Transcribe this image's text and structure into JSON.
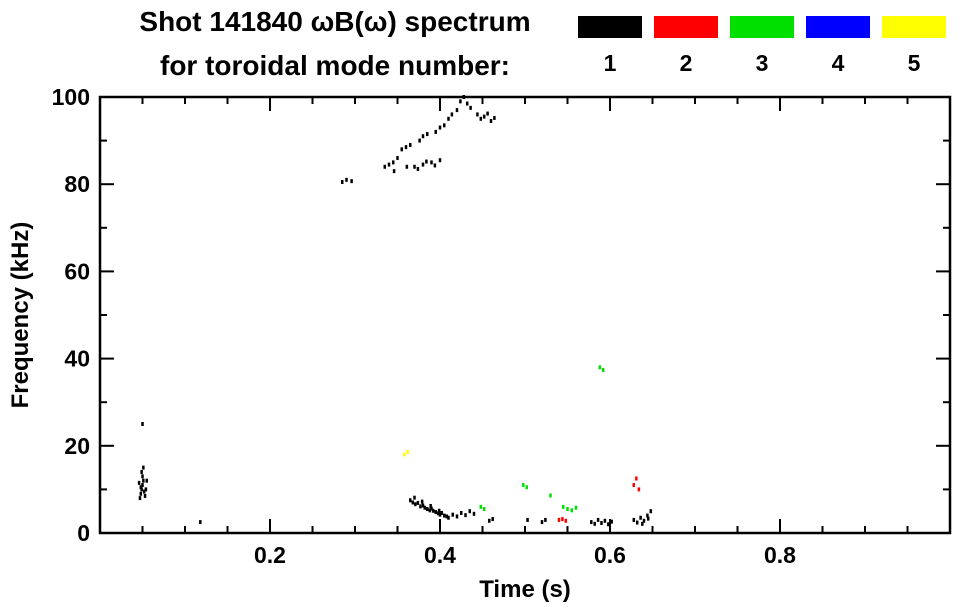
{
  "header": {
    "title_line1": "Shot 141840 ωB(ω) spectrum",
    "title_line2": "for toroidal mode number:"
  },
  "legend": {
    "position": "top-right",
    "items": [
      {
        "label": "1",
        "color": "#000000"
      },
      {
        "label": "2",
        "color": "#ff0000"
      },
      {
        "label": "3",
        "color": "#00e000"
      },
      {
        "label": "4",
        "color": "#0000ff"
      },
      {
        "label": "5",
        "color": "#ffff00"
      }
    ]
  },
  "chart_data": {
    "type": "scatter",
    "title": "Shot 141840 ωB(ω) spectrum for toroidal mode number: 1 2 3 4 5",
    "xlabel": "Time (s)",
    "ylabel": "Frequency (kHz)",
    "xlim": [
      0,
      1.0
    ],
    "ylim": [
      0,
      100
    ],
    "grid": false,
    "x_ticks": [
      {
        "value": 0.2,
        "label": "0.2"
      },
      {
        "value": 0.4,
        "label": "0.4"
      },
      {
        "value": 0.6,
        "label": "0.6"
      },
      {
        "value": 0.8,
        "label": "0.8"
      }
    ],
    "y_ticks": [
      {
        "value": 0,
        "label": "0"
      },
      {
        "value": 20,
        "label": "20"
      },
      {
        "value": 40,
        "label": "40"
      },
      {
        "value": 60,
        "label": "60"
      },
      {
        "value": 80,
        "label": "80"
      },
      {
        "value": 100,
        "label": "100"
      }
    ],
    "x_minor_step": 0.05,
    "y_minor_step": 10,
    "series": [
      {
        "name": "n=1",
        "mode": 1,
        "color": "#000000",
        "points": [
          [
            0.047,
            8
          ],
          [
            0.048,
            9
          ],
          [
            0.049,
            10
          ],
          [
            0.05,
            11
          ],
          [
            0.051,
            12
          ],
          [
            0.05,
            13
          ],
          [
            0.049,
            14
          ],
          [
            0.051,
            15
          ],
          [
            0.052,
            9.5
          ],
          [
            0.048,
            10.5
          ],
          [
            0.053,
            8.5
          ],
          [
            0.046,
            11.5
          ],
          [
            0.054,
            10
          ],
          [
            0.055,
            12
          ],
          [
            0.05,
            25
          ],
          [
            0.118,
            2.5
          ],
          [
            0.285,
            80.5
          ],
          [
            0.29,
            81
          ],
          [
            0.296,
            80.7
          ],
          [
            0.335,
            84
          ],
          [
            0.34,
            84.5
          ],
          [
            0.345,
            85
          ],
          [
            0.35,
            86
          ],
          [
            0.346,
            83
          ],
          [
            0.355,
            88
          ],
          [
            0.36,
            88.5
          ],
          [
            0.361,
            84
          ],
          [
            0.365,
            89
          ],
          [
            0.37,
            84
          ],
          [
            0.374,
            83.5
          ],
          [
            0.38,
            84.5
          ],
          [
            0.384,
            85.2
          ],
          [
            0.376,
            90
          ],
          [
            0.38,
            91
          ],
          [
            0.385,
            91.5
          ],
          [
            0.39,
            85
          ],
          [
            0.394,
            84.3
          ],
          [
            0.4,
            85.5
          ],
          [
            0.395,
            92
          ],
          [
            0.4,
            93
          ],
          [
            0.405,
            93.5
          ],
          [
            0.41,
            95
          ],
          [
            0.414,
            96
          ],
          [
            0.42,
            97
          ],
          [
            0.424,
            99
          ],
          [
            0.428,
            100
          ],
          [
            0.432,
            98.5
          ],
          [
            0.436,
            97.5
          ],
          [
            0.444,
            96
          ],
          [
            0.448,
            95
          ],
          [
            0.452,
            95.5
          ],
          [
            0.456,
            96.2
          ],
          [
            0.46,
            94.5
          ],
          [
            0.464,
            95.2
          ],
          [
            0.365,
            7.5
          ],
          [
            0.368,
            7
          ],
          [
            0.371,
            6.6
          ],
          [
            0.374,
            6.9
          ],
          [
            0.377,
            6.1
          ],
          [
            0.38,
            6.3
          ],
          [
            0.382,
            5.8
          ],
          [
            0.385,
            5.5
          ],
          [
            0.388,
            5.2
          ],
          [
            0.39,
            5.6
          ],
          [
            0.392,
            5.1
          ],
          [
            0.395,
            4.8
          ],
          [
            0.398,
            4.5
          ],
          [
            0.4,
            4.2
          ],
          [
            0.402,
            4.6
          ],
          [
            0.405,
            4.0
          ],
          [
            0.408,
            3.8
          ],
          [
            0.41,
            3.5
          ],
          [
            0.37,
            8.1
          ],
          [
            0.379,
            7.2
          ],
          [
            0.389,
            6.2
          ],
          [
            0.399,
            5.1
          ],
          [
            0.415,
            4.2
          ],
          [
            0.42,
            3.8
          ],
          [
            0.425,
            4.6
          ],
          [
            0.43,
            4.1
          ],
          [
            0.435,
            5.0
          ],
          [
            0.44,
            4.4
          ],
          [
            0.458,
            2.8
          ],
          [
            0.462,
            3.2
          ],
          [
            0.503,
            3.0
          ],
          [
            0.52,
            2.5
          ],
          [
            0.524,
            3.0
          ],
          [
            0.578,
            2.5
          ],
          [
            0.582,
            2.1
          ],
          [
            0.586,
            3.0
          ],
          [
            0.59,
            2.3
          ],
          [
            0.594,
            2.8
          ],
          [
            0.598,
            2.0
          ],
          [
            0.602,
            2.6
          ],
          [
            0.628,
            3.0
          ],
          [
            0.632,
            2.4
          ],
          [
            0.636,
            3.5
          ],
          [
            0.64,
            2.8
          ],
          [
            0.644,
            4.0
          ],
          [
            0.648,
            5.0
          ],
          [
            0.638,
            2.1
          ],
          [
            0.645,
            3.3
          ]
        ]
      },
      {
        "name": "n=2",
        "mode": 2,
        "color": "#ff0000",
        "points": [
          [
            0.54,
            3.0
          ],
          [
            0.544,
            3.2
          ],
          [
            0.548,
            2.8
          ],
          [
            0.628,
            11
          ],
          [
            0.631,
            12.5
          ],
          [
            0.634,
            10
          ]
        ]
      },
      {
        "name": "n=3",
        "mode": 3,
        "color": "#00e000",
        "points": [
          [
            0.588,
            38
          ],
          [
            0.592,
            37.4
          ],
          [
            0.498,
            11
          ],
          [
            0.502,
            10.5
          ],
          [
            0.53,
            8.6
          ],
          [
            0.545,
            6.0
          ],
          [
            0.55,
            5.5
          ],
          [
            0.555,
            5.2
          ],
          [
            0.56,
            5.8
          ],
          [
            0.448,
            6.0
          ],
          [
            0.452,
            5.5
          ]
        ]
      },
      {
        "name": "n=4",
        "mode": 4,
        "color": "#0000ff",
        "points": []
      },
      {
        "name": "n=5",
        "mode": 5,
        "color": "#ffff00",
        "points": [
          [
            0.358,
            18
          ],
          [
            0.362,
            18.6
          ]
        ]
      }
    ]
  }
}
